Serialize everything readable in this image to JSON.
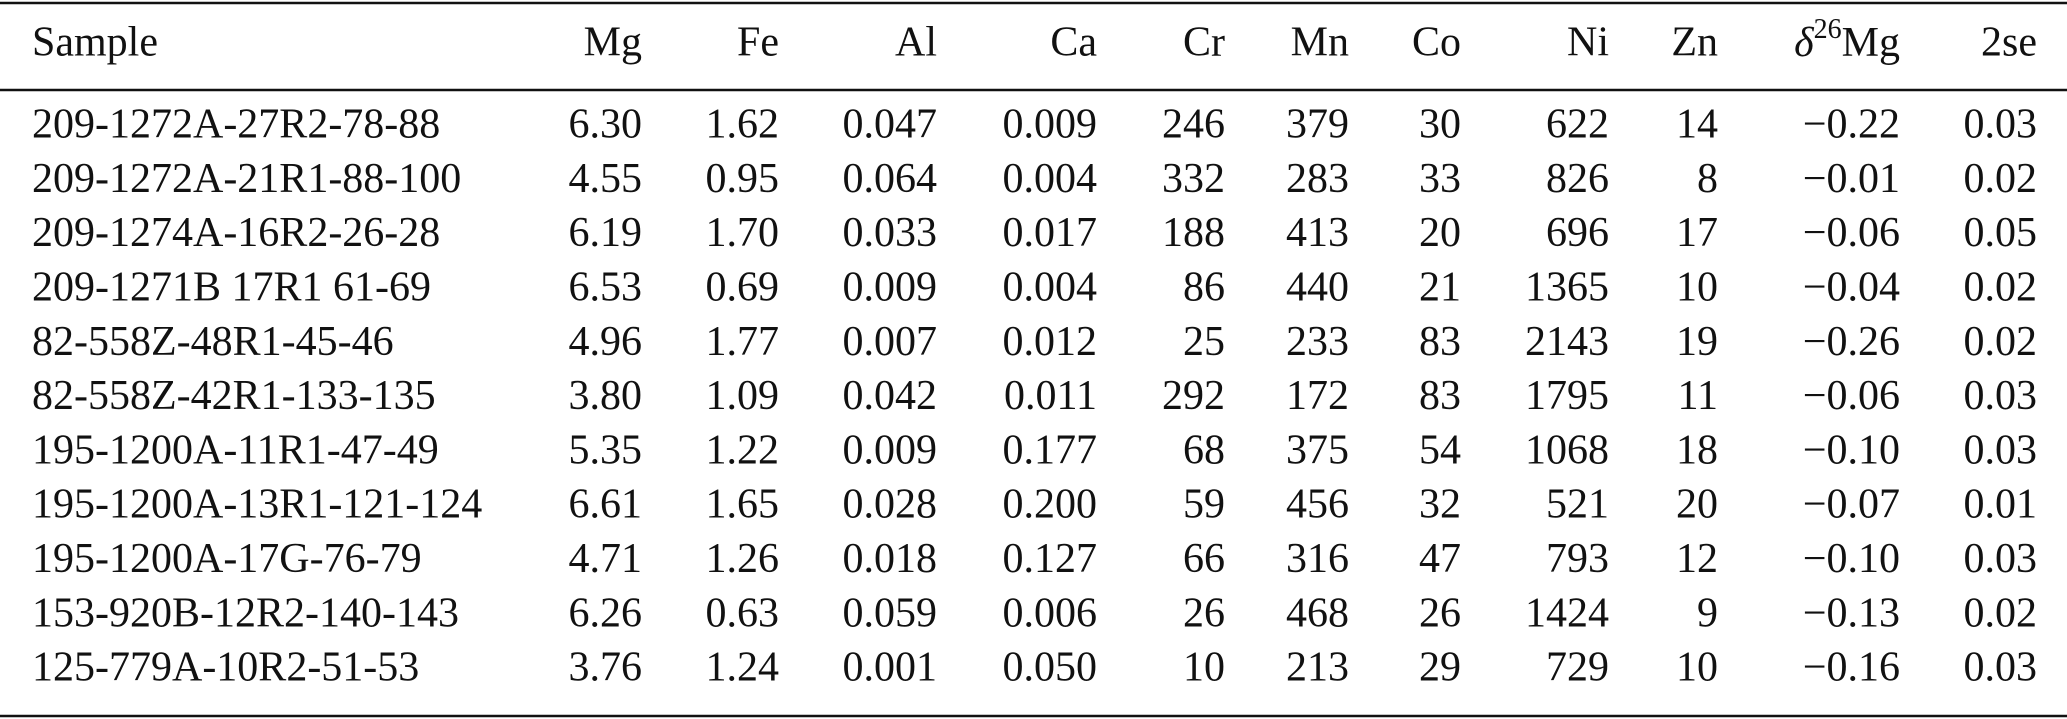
{
  "table": {
    "header": [
      "Sample",
      "Mg",
      "Fe",
      "Al",
      "Ca",
      "Cr",
      "Mn",
      "Co",
      "Ni",
      "Zn",
      {
        "symbol": "δ",
        "superscript": "26",
        "text": "Mg"
      },
      "2se"
    ],
    "rows": [
      [
        "209-1272A-27R2-78-88",
        "6.30",
        "1.62",
        "0.047",
        "0.009",
        "246",
        "379",
        "30",
        "622",
        "14",
        "−0.22",
        "0.03"
      ],
      [
        "209-1272A-21R1-88-100",
        "4.55",
        "0.95",
        "0.064",
        "0.004",
        "332",
        "283",
        "33",
        "826",
        "8",
        "−0.01",
        "0.02"
      ],
      [
        "209-1274A-16R2-26-28",
        "6.19",
        "1.70",
        "0.033",
        "0.017",
        "188",
        "413",
        "20",
        "696",
        "17",
        "−0.06",
        "0.05"
      ],
      [
        "209-1271B 17R1 61-69",
        "6.53",
        "0.69",
        "0.009",
        "0.004",
        "86",
        "440",
        "21",
        "1365",
        "10",
        "−0.04",
        "0.02"
      ],
      [
        "82-558Z-48R1-45-46",
        "4.96",
        "1.77",
        "0.007",
        "0.012",
        "25",
        "233",
        "83",
        "2143",
        "19",
        "−0.26",
        "0.02"
      ],
      [
        "82-558Z-42R1-133-135",
        "3.80",
        "1.09",
        "0.042",
        "0.011",
        "292",
        "172",
        "83",
        "1795",
        "11",
        "−0.06",
        "0.03"
      ],
      [
        "195-1200A-11R1-47-49",
        "5.35",
        "1.22",
        "0.009",
        "0.177",
        "68",
        "375",
        "54",
        "1068",
        "18",
        "−0.10",
        "0.03"
      ],
      [
        "195-1200A-13R1-121-124",
        "6.61",
        "1.65",
        "0.028",
        "0.200",
        "59",
        "456",
        "32",
        "521",
        "20",
        "−0.07",
        "0.01"
      ],
      [
        "195-1200A-17G-76-79",
        "4.71",
        "1.26",
        "0.018",
        "0.127",
        "66",
        "316",
        "47",
        "793",
        "12",
        "−0.10",
        "0.03"
      ],
      [
        "153-920B-12R2-140-143",
        "6.26",
        "0.63",
        "0.059",
        "0.006",
        "26",
        "468",
        "26",
        "1424",
        "9",
        "−0.13",
        "0.02"
      ],
      [
        "125-779A-10R2-51-53",
        "3.76",
        "1.24",
        "0.001",
        "0.050",
        "10",
        "213",
        "29",
        "729",
        "10",
        "−0.16",
        "0.03"
      ]
    ]
  }
}
